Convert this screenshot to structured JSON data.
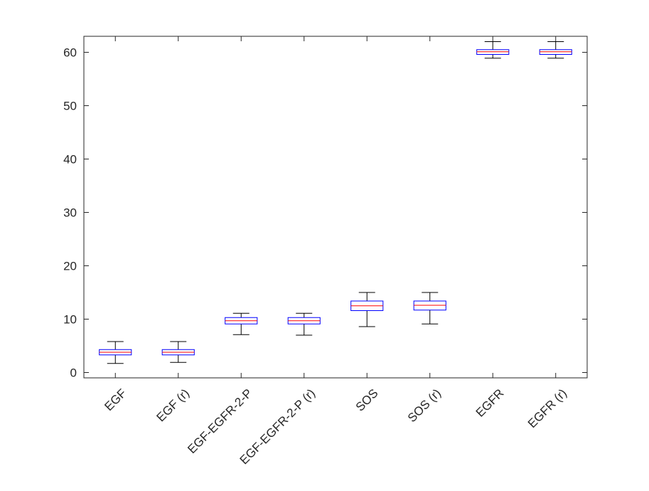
{
  "chart_data": {
    "type": "boxplot",
    "title": "",
    "xlabel": "",
    "ylabel": "",
    "ylim": [
      -1,
      63
    ],
    "yticks": [
      0,
      10,
      20,
      30,
      40,
      50,
      60
    ],
    "grid": false,
    "categories": [
      "EGF",
      "EGF (r)",
      "EGF-EGFR-2-P",
      "EGF-EGFR-2-P (r)",
      "SOS",
      "SOS (r)",
      "EGFR",
      "EGFR (r)"
    ],
    "boxes": [
      {
        "label": "EGF",
        "whisker_low": 1.7,
        "q1": 3.3,
        "median": 3.8,
        "q3": 4.3,
        "whisker_high": 5.8
      },
      {
        "label": "EGF (r)",
        "whisker_low": 1.9,
        "q1": 3.3,
        "median": 3.8,
        "q3": 4.3,
        "whisker_high": 5.8
      },
      {
        "label": "EGF-EGFR-2-P",
        "whisker_low": 7.1,
        "q1": 9.1,
        "median": 9.7,
        "q3": 10.3,
        "whisker_high": 11.1
      },
      {
        "label": "EGF-EGFR-2-P (r)",
        "whisker_low": 7.0,
        "q1": 9.1,
        "median": 9.7,
        "q3": 10.3,
        "whisker_high": 11.1
      },
      {
        "label": "SOS",
        "whisker_low": 8.6,
        "q1": 11.6,
        "median": 12.5,
        "q3": 13.4,
        "whisker_high": 15.0
      },
      {
        "label": "SOS (r)",
        "whisker_low": 9.1,
        "q1": 11.7,
        "median": 12.6,
        "q3": 13.4,
        "whisker_high": 15.0
      },
      {
        "label": "EGFR",
        "whisker_low": 58.9,
        "q1": 59.6,
        "median": 60.1,
        "q3": 60.5,
        "whisker_high": 62.0
      },
      {
        "label": "EGFR (r)",
        "whisker_low": 58.9,
        "q1": 59.6,
        "median": 60.1,
        "q3": 60.5,
        "whisker_high": 62.0
      }
    ],
    "colors": {
      "box": "#0000ff",
      "median": "#ff0000",
      "whisker": "#000000",
      "axis": "#262626"
    }
  }
}
